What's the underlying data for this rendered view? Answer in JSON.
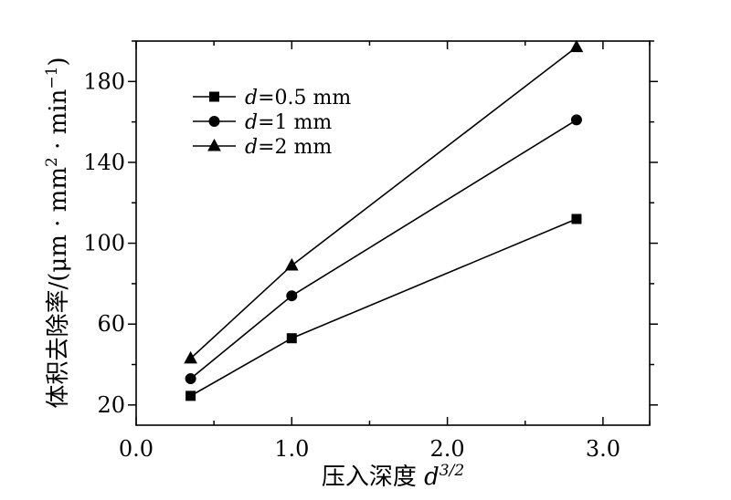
{
  "chart_data": {
    "type": "line",
    "xlabel": "压入深度 d3/2",
    "xlabel_main": "压入深度 ",
    "xlabel_var": "d",
    "xlabel_sup": "3/2",
    "ylabel": "体积去除率/(μm · mm2 · min−1)",
    "ylabel_main": "体积去除率/(μm · mm",
    "ylabel_sup1": "2",
    "ylabel_mid": " · min",
    "ylabel_sup2": "−1",
    "ylabel_end": ")",
    "xlim": [
      0.0,
      3.3
    ],
    "ylim": [
      10,
      200
    ],
    "xticks": [
      0.0,
      0.5,
      1.0,
      1.5,
      2.0,
      2.5,
      3.0,
      3.3
    ],
    "xtick_labels": [
      "0.0",
      "1.0",
      "2.0",
      "3.0"
    ],
    "xtick_label_values": [
      0.0,
      1.0,
      2.0,
      3.0
    ],
    "yticks": [
      20,
      40,
      60,
      80,
      100,
      120,
      140,
      160,
      180,
      200
    ],
    "ytick_labels": [
      "20",
      "60",
      "100",
      "140",
      "180"
    ],
    "ytick_label_values": [
      20,
      60,
      100,
      140,
      180
    ],
    "legend_position": "top-left",
    "grid": false,
    "series": [
      {
        "name": "d=0.5 mm",
        "name_var": "d",
        "name_rest": "=0.5 mm",
        "marker": "square",
        "x": [
          0.35,
          1.0,
          2.83
        ],
        "y": [
          24.5,
          53,
          112
        ]
      },
      {
        "name": "d=1 mm",
        "name_var": "d",
        "name_rest": "=1 mm",
        "marker": "circle",
        "x": [
          0.35,
          1.0,
          2.83
        ],
        "y": [
          33,
          74,
          161
        ]
      },
      {
        "name": "d=2 mm",
        "name_var": "d",
        "name_rest": "=2 mm",
        "marker": "triangle",
        "x": [
          0.35,
          1.0,
          2.83
        ],
        "y": [
          43,
          89,
          197
        ]
      }
    ]
  }
}
